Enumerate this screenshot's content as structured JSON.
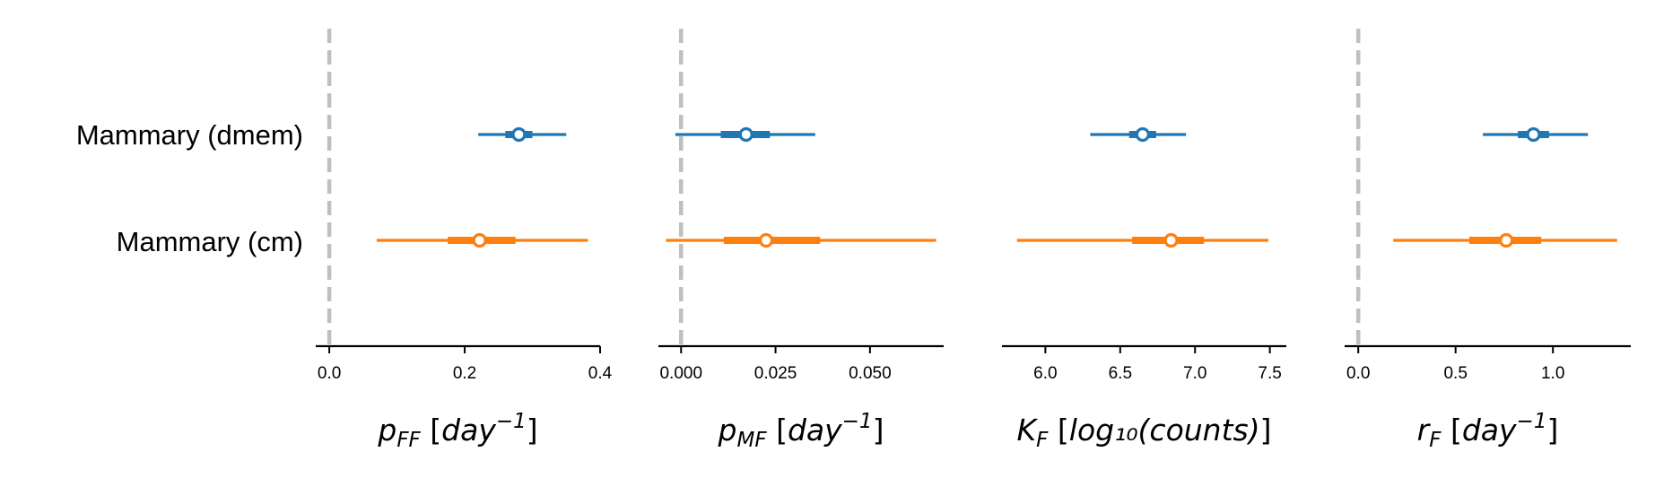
{
  "chart_data": {
    "type": "forest",
    "categories": [
      "Mammary (dmem)",
      "Mammary (cm)"
    ],
    "series_colors": [
      "#1f77b4",
      "#ff7f0e"
    ],
    "reference_line": {
      "x": 0,
      "color": "#bfbfbf",
      "style": "dashed"
    },
    "grid": false,
    "legend": "none",
    "panels": [
      {
        "xlabel": {
          "base": "p",
          "sub": "FF",
          "unit": "day",
          "exp": "−1"
        },
        "xlim": [
          -0.02,
          0.4
        ],
        "ticks": [
          0.0,
          0.2,
          0.4
        ],
        "tick_labels": [
          "0.0",
          "0.2",
          "0.4"
        ],
        "ref_line": true,
        "estimates": [
          {
            "category": "Mammary (dmem)",
            "mean": 0.28,
            "hdi_inner": [
              0.26,
              0.3
            ],
            "hdi_outer": [
              0.22,
              0.35
            ]
          },
          {
            "category": "Mammary (cm)",
            "mean": 0.222,
            "hdi_inner": [
              0.175,
              0.275
            ],
            "hdi_outer": [
              0.07,
              0.382
            ]
          }
        ]
      },
      {
        "xlabel": {
          "base": "p",
          "sub": "MF",
          "unit": "day",
          "exp": "−1"
        },
        "xlim": [
          -0.006,
          0.0695
        ],
        "ticks": [
          0.0,
          0.025,
          0.05
        ],
        "tick_labels": [
          "0.000",
          "0.025",
          "0.050"
        ],
        "ref_line": true,
        "estimates": [
          {
            "category": "Mammary (dmem)",
            "mean": 0.0172,
            "hdi_inner": [
              0.0105,
              0.0235
            ],
            "hdi_outer": [
              -0.0015,
              0.0355
            ]
          },
          {
            "category": "Mammary (cm)",
            "mean": 0.0225,
            "hdi_inner": [
              0.0113,
              0.0368
            ],
            "hdi_outer": [
              -0.004,
              0.0675
            ]
          }
        ]
      },
      {
        "xlabel": {
          "base": "K",
          "sub": "F",
          "unit": "log₁₀(counts)",
          "exp": ""
        },
        "xlim": [
          5.71,
          7.61
        ],
        "ticks": [
          6.0,
          6.5,
          7.0,
          7.5
        ],
        "tick_labels": [
          "6.0",
          "6.5",
          "7.0",
          "7.5"
        ],
        "ref_line": false,
        "estimates": [
          {
            "category": "Mammary (dmem)",
            "mean": 6.65,
            "hdi_inner": [
              6.56,
              6.74
            ],
            "hdi_outer": [
              6.3,
              6.94
            ]
          },
          {
            "category": "Mammary (cm)",
            "mean": 6.84,
            "hdi_inner": [
              6.58,
              7.06
            ],
            "hdi_outer": [
              5.81,
              7.49
            ]
          }
        ]
      },
      {
        "xlabel": {
          "base": "r",
          "sub": "F",
          "unit": "day",
          "exp": "−1"
        },
        "xlim": [
          -0.07,
          1.4
        ],
        "ticks": [
          0.0,
          0.5,
          1.0
        ],
        "tick_labels": [
          "0.0",
          "0.5",
          "1.0"
        ],
        "ref_line": true,
        "estimates": [
          {
            "category": "Mammary (dmem)",
            "mean": 0.9,
            "hdi_inner": [
              0.82,
              0.98
            ],
            "hdi_outer": [
              0.64,
              1.18
            ]
          },
          {
            "category": "Mammary (cm)",
            "mean": 0.76,
            "hdi_inner": [
              0.57,
              0.94
            ],
            "hdi_outer": [
              0.18,
              1.33
            ]
          }
        ]
      }
    ]
  }
}
